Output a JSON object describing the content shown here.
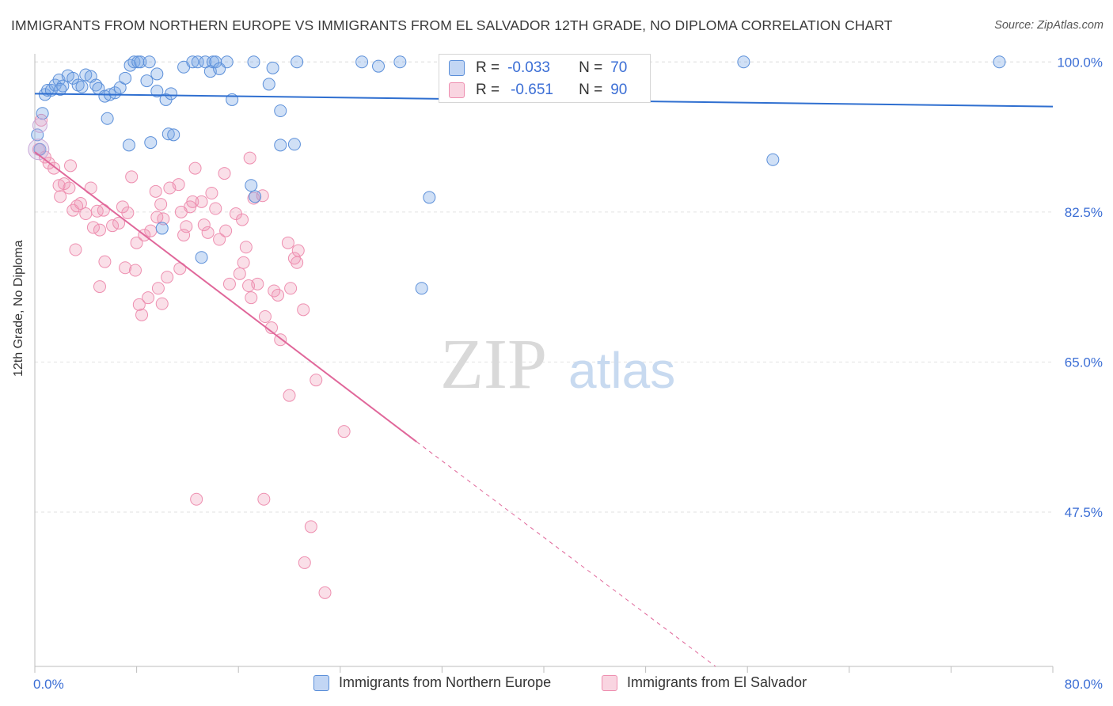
{
  "title": "IMMIGRANTS FROM NORTHERN EUROPE VS IMMIGRANTS FROM EL SALVADOR 12TH GRADE, NO DIPLOMA CORRELATION CHART",
  "source": "Source: ZipAtlas.com",
  "watermark": {
    "zip": "ZIP",
    "atlas": "atlas"
  },
  "stats": {
    "rows": [
      {
        "r_label": "R =",
        "r_value": "-0.033",
        "n_label": "N =",
        "n_value": "70"
      },
      {
        "r_label": "R =",
        "r_value": "-0.651",
        "n_label": "N =",
        "n_value": "90"
      }
    ]
  },
  "legend": [
    "Immigrants from Northern Europe",
    "Immigrants from El Salvador"
  ],
  "colors": {
    "blue_fill": "rgba(120,165,230,0.35)",
    "blue_stroke": "#5b8fd9",
    "blue_line": "#2f6fd0",
    "pink_fill": "rgba(240,150,180,0.30)",
    "pink_stroke": "#ee8fb0",
    "pink_line": "#e0679a",
    "tick_text": "#3b6ed5",
    "grid": "#e2e2e2"
  },
  "chart_data": {
    "type": "scatter",
    "xlabel": "",
    "ylabel": "12th Grade, No Diploma",
    "xlim": [
      0,
      80
    ],
    "ylim": [
      29.5,
      101.5
    ],
    "x_tick_labels": [
      "0.0%",
      "80.0%"
    ],
    "y_ticks": [
      47.5,
      65.0,
      82.5,
      100.0
    ],
    "y_tick_labels": [
      "47.5%",
      "65.0%",
      "82.5%",
      "100.0%"
    ],
    "grid": true,
    "legend_position": "bottom",
    "series": [
      {
        "name": "Immigrants from Northern Europe",
        "color": "#5b8fd9",
        "trend": {
          "x": [
            0,
            80
          ],
          "y": [
            96.3,
            94.8
          ]
        },
        "points": [
          [
            0.2,
            91.5
          ],
          [
            0.4,
            89.8
          ],
          [
            0.6,
            94.0
          ],
          [
            0.8,
            96.2
          ],
          [
            1.0,
            96.7
          ],
          [
            1.3,
            96.7
          ],
          [
            1.6,
            97.3
          ],
          [
            1.9,
            97.9
          ],
          [
            2.2,
            97.2
          ],
          [
            2.6,
            98.4
          ],
          [
            3.0,
            98.1
          ],
          [
            3.4,
            97.3
          ],
          [
            3.7,
            97.1
          ],
          [
            4.0,
            98.5
          ],
          [
            4.4,
            98.3
          ],
          [
            4.8,
            97.3
          ],
          [
            5.0,
            96.9
          ],
          [
            5.5,
            96.0
          ],
          [
            5.9,
            96.2
          ],
          [
            6.3,
            96.4
          ],
          [
            6.7,
            97.0
          ],
          [
            7.1,
            98.1
          ],
          [
            7.5,
            99.6
          ],
          [
            7.8,
            100.0
          ],
          [
            8.1,
            100.0
          ],
          [
            8.3,
            100.0
          ],
          [
            8.8,
            97.8
          ],
          [
            9.0,
            100.0
          ],
          [
            9.6,
            96.6
          ],
          [
            10.3,
            95.6
          ],
          [
            11.7,
            99.4
          ],
          [
            12.4,
            100.0
          ],
          [
            12.8,
            100.0
          ],
          [
            13.4,
            100.0
          ],
          [
            13.8,
            98.9
          ],
          [
            14.0,
            100.0
          ],
          [
            14.2,
            100.0
          ],
          [
            14.5,
            99.2
          ],
          [
            15.1,
            100.0
          ],
          [
            17.2,
            100.0
          ],
          [
            18.4,
            97.4
          ],
          [
            18.7,
            99.3
          ],
          [
            20.6,
            100.0
          ],
          [
            25.7,
            100.0
          ],
          [
            27.0,
            99.5
          ],
          [
            28.7,
            100.0
          ],
          [
            36.7,
            100.0
          ],
          [
            39.7,
            100.0
          ],
          [
            40.3,
            96.4
          ],
          [
            5.7,
            93.4
          ],
          [
            7.4,
            90.3
          ],
          [
            10.5,
            91.6
          ],
          [
            10.9,
            91.5
          ],
          [
            9.1,
            90.6
          ],
          [
            19.3,
            90.3
          ],
          [
            20.4,
            90.4
          ],
          [
            19.3,
            94.3
          ],
          [
            15.5,
            95.6
          ],
          [
            17.0,
            85.6
          ],
          [
            17.3,
            84.3
          ],
          [
            31.0,
            84.2
          ],
          [
            30.4,
            73.6
          ],
          [
            10.0,
            80.6
          ],
          [
            13.1,
            77.2
          ],
          [
            55.7,
            100.0
          ],
          [
            58.0,
            88.6
          ],
          [
            75.8,
            100.0
          ],
          [
            9.6,
            98.6
          ],
          [
            10.7,
            96.3
          ],
          [
            2.0,
            96.8
          ]
        ]
      },
      {
        "name": "Immigrants from El Salvador",
        "color": "#ee8fb0",
        "trend": {
          "x": [
            0,
            30
          ],
          "y": [
            89.5,
            55.7
          ]
        },
        "trend_dashed": {
          "x": [
            30,
            53.5
          ],
          "y": [
            55.7,
            29.5
          ]
        },
        "points": [
          [
            0.3,
            89.8
          ],
          [
            0.5,
            93.2
          ],
          [
            0.8,
            88.9
          ],
          [
            1.1,
            88.2
          ],
          [
            1.5,
            87.6
          ],
          [
            1.9,
            85.6
          ],
          [
            2.3,
            85.8
          ],
          [
            2.0,
            84.3
          ],
          [
            2.7,
            85.3
          ],
          [
            3.0,
            82.7
          ],
          [
            3.3,
            83.2
          ],
          [
            3.6,
            83.5
          ],
          [
            2.8,
            87.9
          ],
          [
            3.2,
            78.1
          ],
          [
            4.0,
            82.3
          ],
          [
            4.6,
            80.7
          ],
          [
            4.9,
            82.6
          ],
          [
            5.1,
            80.4
          ],
          [
            5.4,
            82.7
          ],
          [
            4.4,
            85.3
          ],
          [
            5.5,
            76.7
          ],
          [
            5.1,
            73.8
          ],
          [
            6.1,
            80.9
          ],
          [
            6.6,
            81.2
          ],
          [
            6.9,
            83.1
          ],
          [
            7.3,
            82.4
          ],
          [
            7.6,
            86.6
          ],
          [
            7.1,
            76.0
          ],
          [
            7.9,
            75.7
          ],
          [
            8.0,
            78.9
          ],
          [
            8.6,
            79.8
          ],
          [
            9.1,
            80.3
          ],
          [
            9.6,
            81.9
          ],
          [
            10.1,
            81.7
          ],
          [
            8.2,
            71.7
          ],
          [
            8.4,
            70.5
          ],
          [
            8.9,
            72.5
          ],
          [
            9.7,
            73.6
          ],
          [
            10.4,
            74.9
          ],
          [
            9.5,
            84.9
          ],
          [
            9.9,
            83.4
          ],
          [
            10.6,
            85.3
          ],
          [
            11.3,
            85.7
          ],
          [
            11.5,
            82.5
          ],
          [
            11.9,
            80.8
          ],
          [
            12.2,
            83.1
          ],
          [
            10.0,
            71.8
          ],
          [
            11.4,
            75.9
          ],
          [
            12.4,
            83.7
          ],
          [
            11.7,
            79.8
          ],
          [
            12.6,
            87.6
          ],
          [
            13.1,
            83.7
          ],
          [
            13.6,
            80.1
          ],
          [
            14.2,
            82.9
          ],
          [
            13.9,
            84.7
          ],
          [
            14.9,
            87.0
          ],
          [
            13.3,
            81.0
          ],
          [
            14.5,
            79.3
          ],
          [
            15.0,
            80.3
          ],
          [
            15.8,
            82.3
          ],
          [
            16.3,
            81.6
          ],
          [
            16.9,
            88.8
          ],
          [
            16.6,
            78.4
          ],
          [
            17.2,
            84.1
          ],
          [
            17.9,
            84.4
          ],
          [
            15.3,
            74.1
          ],
          [
            16.1,
            75.3
          ],
          [
            16.8,
            73.9
          ],
          [
            17.5,
            74.1
          ],
          [
            18.1,
            70.3
          ],
          [
            17.0,
            72.5
          ],
          [
            19.1,
            72.8
          ],
          [
            19.9,
            78.9
          ],
          [
            20.4,
            77.1
          ],
          [
            20.7,
            78.0
          ],
          [
            21.1,
            71.1
          ],
          [
            18.6,
            69.0
          ],
          [
            19.3,
            67.6
          ],
          [
            20.0,
            61.1
          ],
          [
            22.1,
            62.9
          ],
          [
            24.3,
            56.9
          ],
          [
            21.7,
            45.8
          ],
          [
            21.2,
            41.6
          ],
          [
            22.8,
            38.1
          ],
          [
            12.7,
            49.0
          ],
          [
            18.0,
            49.0
          ],
          [
            20.6,
            76.6
          ],
          [
            16.4,
            76.6
          ],
          [
            20.1,
            73.6
          ],
          [
            18.8,
            73.3
          ]
        ]
      }
    ]
  }
}
